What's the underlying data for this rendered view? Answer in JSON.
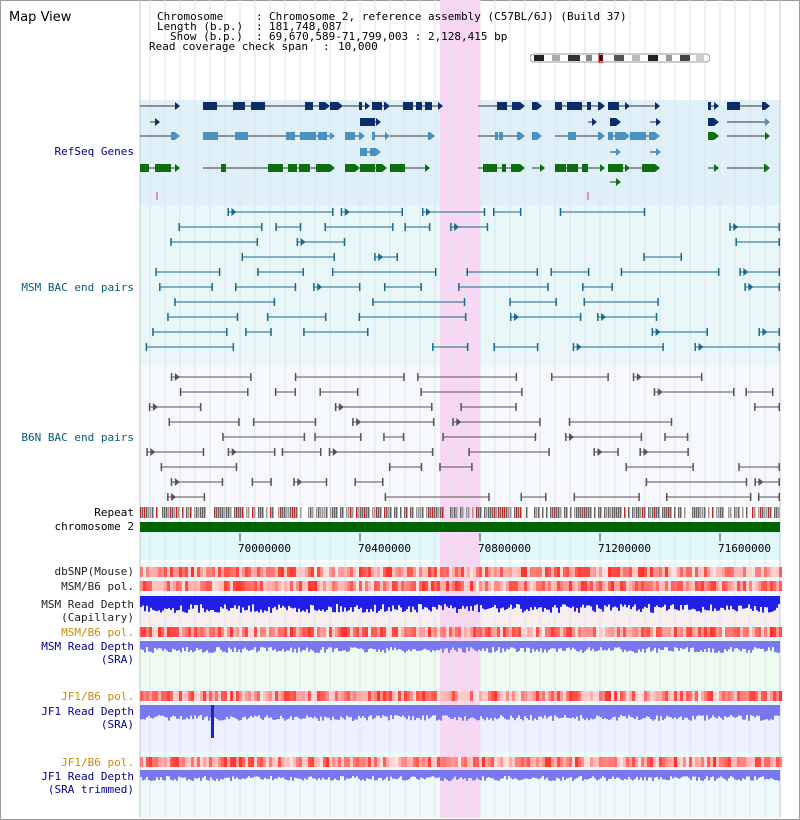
{
  "title": "Map View",
  "header": {
    "chromosome_key": "Chromosome",
    "chromosome_val": "Chromosome 2, reference assembly (C57BL/6J) (Build 37)",
    "length_key": "Length (b.p.)",
    "length_val": "181,748,087",
    "show_key": "Show (b.p.)",
    "show_val": "69,670,589-71,799,003 : 2,128,415 bp",
    "span_key": "Read coverage check span",
    "span_val": "10,000"
  },
  "tracks": {
    "refseq": "RefSeq Genes",
    "msm_bac": "MSM BAC end pairs",
    "b6n_bac": "B6N BAC end pairs",
    "repeat": "Repeat",
    "chromosome": "chromosome 2",
    "dbsnp": "dbSNP(Mouse)",
    "msm_b6_pol": "MSM/B6 pol.",
    "msm_depth_cap_1": "MSM Read Depth",
    "msm_depth_cap_2": "(Capillary)",
    "msm_b6_pol_2": "MSM/B6 pol.",
    "msm_depth_sra_1": "MSM Read Depth",
    "msm_depth_sra_2": "(SRA)",
    "jf1_b6_pol": "JF1/B6 pol.",
    "jf1_depth_sra_1": "JF1 Read Depth",
    "jf1_depth_sra_2": "(SRA)",
    "jf1_b6_pol_2": "JF1/B6 pol.",
    "jf1_depth_trim_1": "JF1 Read Depth",
    "jf1_depth_trim_2": "(SRA trimmed)"
  },
  "ruler": {
    "ticks": [
      "70000000",
      "70400000",
      "70800000",
      "71200000",
      "71600000"
    ]
  },
  "colors": {
    "refseq_bg": "#dff0f8",
    "bac_bg": "#e9f7f9",
    "bac_end": "#1a6a8c",
    "b6n_line": "#555555",
    "highlight": "#f7d7f2",
    "chromosome": "#006400",
    "gene_dark": "#0b2e6b",
    "gene_mid": "#4a93c0",
    "gene_green": "#0e6e10",
    "depth_blue": "#1f1fe8",
    "depth_light": "#7878f0",
    "label_blue": "#00008b",
    "label_teal": "#0a5a7a",
    "label_orange": "#d08a00"
  }
}
